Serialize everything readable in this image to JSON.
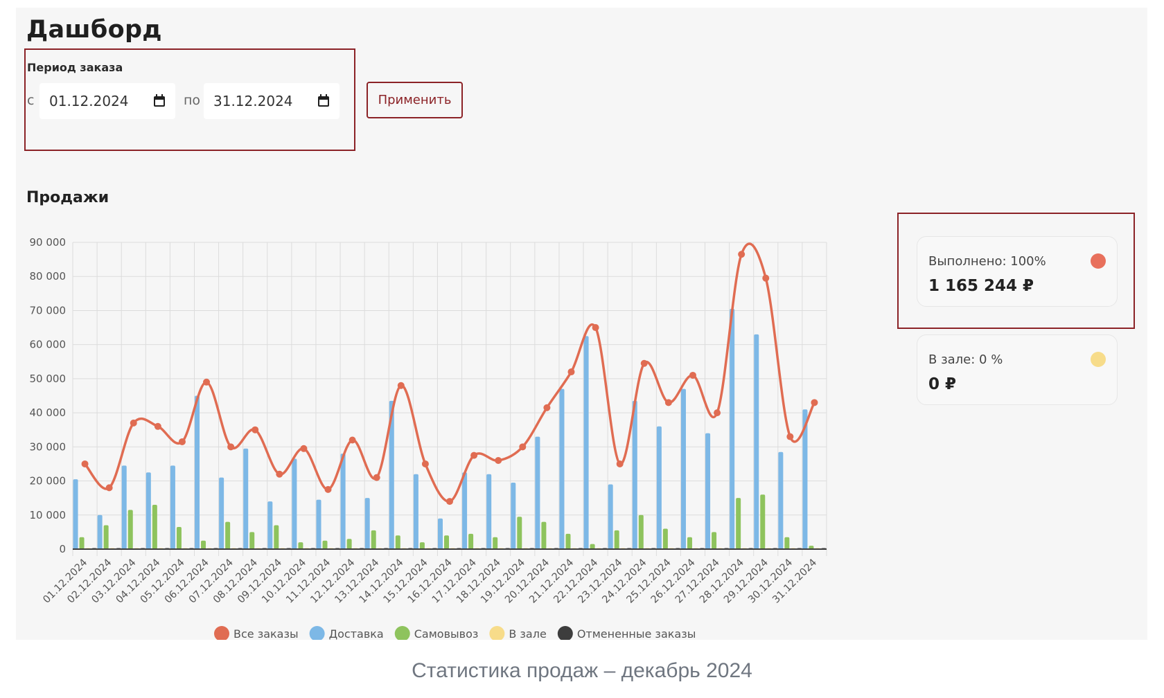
{
  "page": {
    "title": "Дашборд"
  },
  "period": {
    "label": "Период заказа",
    "from_prefix": "с",
    "from_value": "01.12.2024",
    "to_prefix": "по",
    "to_value": "31.12.2024",
    "apply_label": "Применить"
  },
  "sales": {
    "title": "Продажи"
  },
  "stats": [
    {
      "label": "Выполнено: 100%",
      "value": "1 165 244 ₽",
      "dot_color": "#e8705c"
    },
    {
      "label": "В зале: 0 %",
      "value": "0 ₽",
      "dot_color": "#f7dc8a"
    }
  ],
  "caption": "Статистика продаж – декабрь 2024",
  "chart_data": {
    "type": "bar",
    "categories": [
      "01.12.2024",
      "02.12.2024",
      "03.12.2024",
      "04.12.2024",
      "05.12.2024",
      "06.12.2024",
      "07.12.2024",
      "08.12.2024",
      "09.12.2024",
      "10.12.2024",
      "11.12.2024",
      "12.12.2024",
      "13.12.2024",
      "14.12.2024",
      "15.12.2024",
      "16.12.2024",
      "17.12.2024",
      "18.12.2024",
      "19.12.2024",
      "20.12.2024",
      "21.12.2024",
      "22.12.2024",
      "23.12.2024",
      "24.12.2024",
      "25.12.2024",
      "26.12.2024",
      "27.12.2024",
      "28.12.2024",
      "29.12.2024",
      "30.12.2024",
      "31.12.2024"
    ],
    "ylim": [
      0,
      90000
    ],
    "yticks": [
      "0",
      "10 000",
      "20 000",
      "30 000",
      "40 000",
      "50 000",
      "60 000",
      "70 000",
      "80 000",
      "90 000"
    ],
    "grid": true,
    "legend_position": "bottom",
    "series": [
      {
        "name": "Все заказы",
        "kind": "line",
        "color": "#e06c52",
        "values": [
          25000,
          18000,
          37000,
          36000,
          31500,
          49000,
          30000,
          35000,
          22000,
          29500,
          17500,
          32000,
          21000,
          48000,
          25000,
          14000,
          27500,
          26000,
          30000,
          41500,
          52000,
          65000,
          25000,
          54500,
          43000,
          51000,
          40000,
          86500,
          79500,
          33000,
          43000
        ]
      },
      {
        "name": "Доставка",
        "kind": "bar",
        "color": "#7db8e6",
        "values": [
          20500,
          10000,
          24500,
          22500,
          24500,
          45000,
          21000,
          29500,
          14000,
          26500,
          14500,
          28000,
          15000,
          43500,
          22000,
          9000,
          22500,
          22000,
          19500,
          33000,
          47000,
          62500,
          19000,
          43500,
          36000,
          47000,
          34000,
          70500,
          63000,
          28500,
          41000
        ]
      },
      {
        "name": "Самовывоз",
        "kind": "bar",
        "color": "#8ec35d",
        "values": [
          3500,
          7000,
          11500,
          13000,
          6500,
          2500,
          8000,
          5000,
          7000,
          2000,
          2500,
          3000,
          5500,
          4000,
          2000,
          4000,
          4500,
          3500,
          9500,
          8000,
          4500,
          1500,
          5500,
          10000,
          6000,
          3500,
          5000,
          15000,
          16000,
          3500,
          1000
        ]
      },
      {
        "name": "В зале",
        "kind": "bar",
        "color": "#f7dc8a",
        "values": [
          0,
          0,
          0,
          0,
          0,
          0,
          0,
          0,
          0,
          0,
          0,
          0,
          0,
          0,
          0,
          0,
          0,
          0,
          0,
          0,
          0,
          0,
          0,
          0,
          0,
          0,
          0,
          0,
          0,
          0,
          0
        ]
      },
      {
        "name": "Отмененные заказы",
        "kind": "bar",
        "color": "#3d3d3d",
        "values": [
          0,
          0,
          0,
          0,
          0,
          0,
          0,
          0,
          0,
          0,
          0,
          0,
          0,
          0,
          0,
          0,
          0,
          0,
          0,
          0,
          0,
          0,
          0,
          0,
          0,
          0,
          0,
          0,
          0,
          0,
          0
        ]
      }
    ]
  }
}
